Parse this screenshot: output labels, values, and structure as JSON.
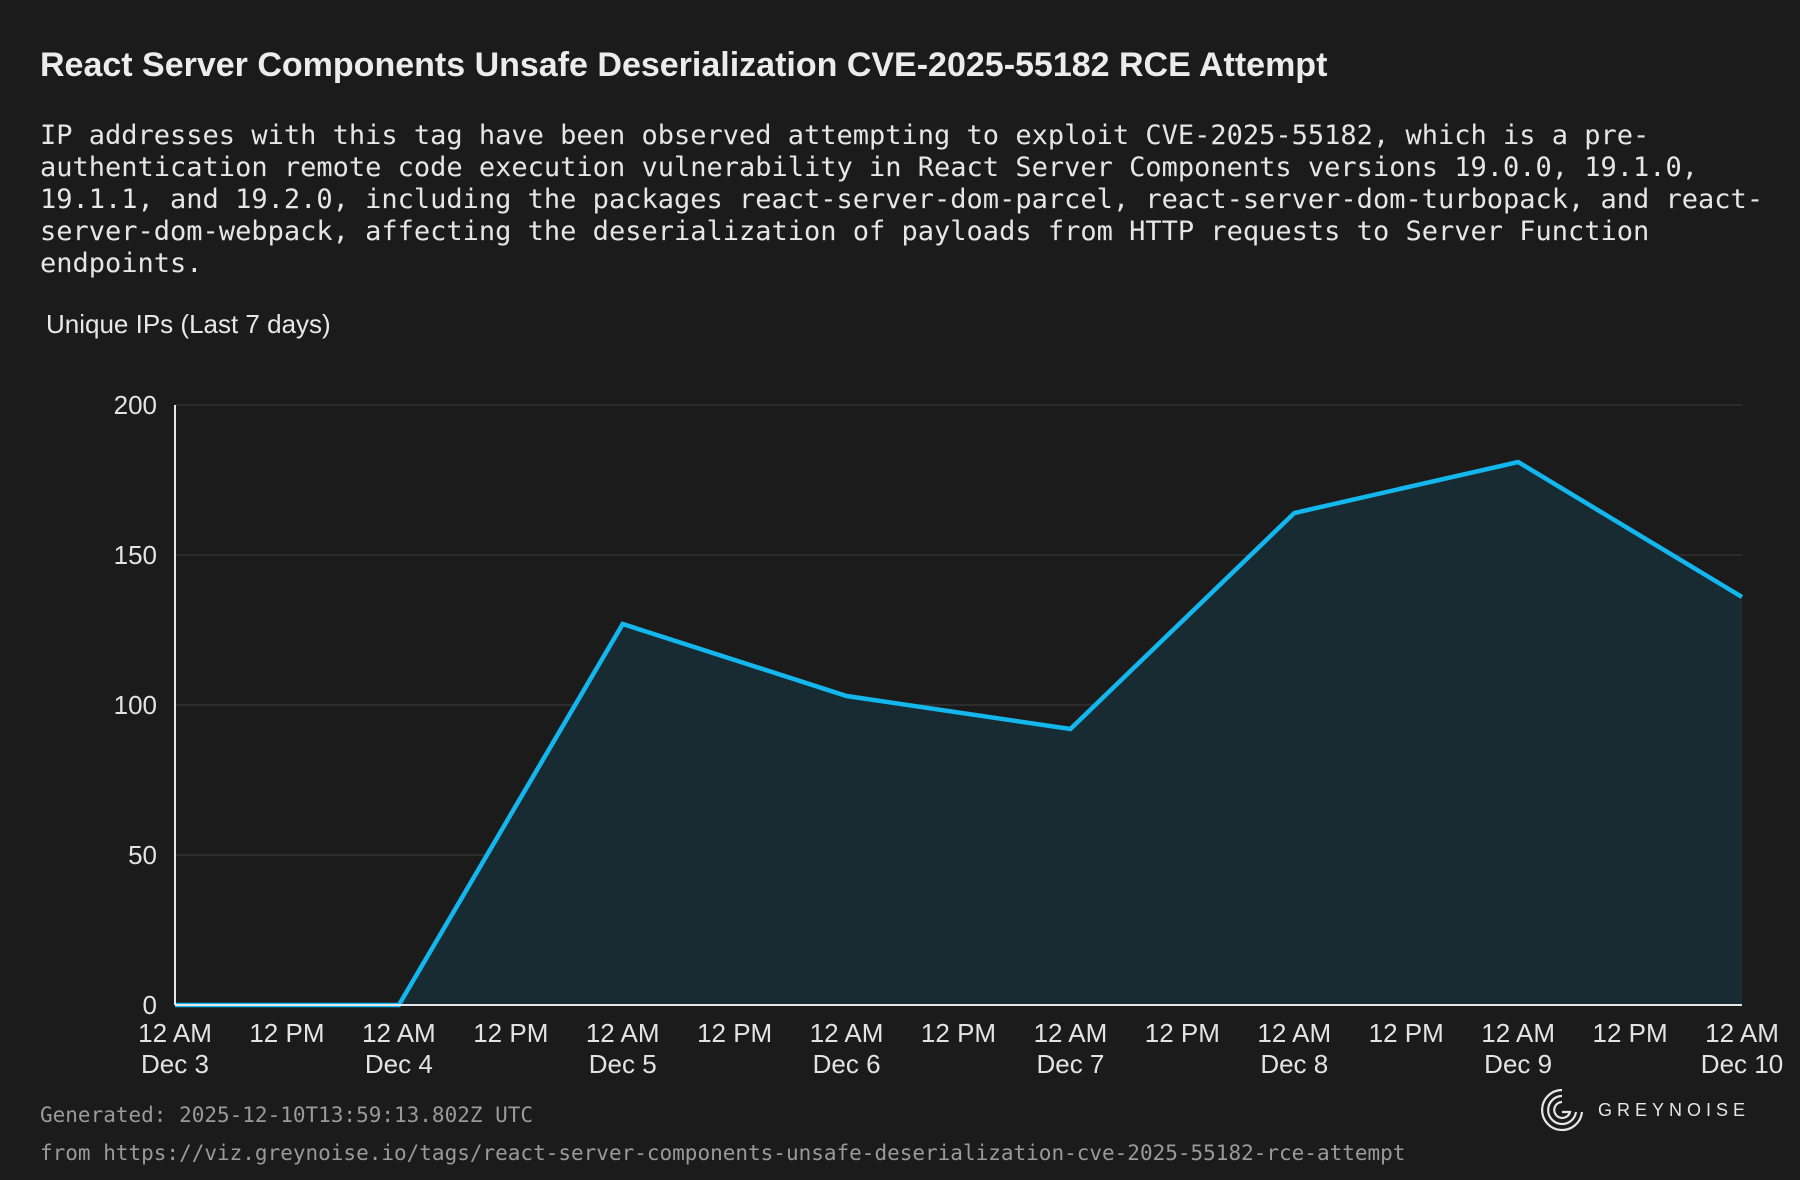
{
  "header": {
    "title": "React Server Components Unsafe Deserialization CVE-2025-55182 RCE Attempt",
    "description": "IP addresses with this tag have been observed attempting to exploit CVE-2025-55182, which is a pre-authentication remote code execution vulnerability in React Server Components versions 19.0.0, 19.1.0, 19.1.1, and 19.2.0, including the packages react-server-dom-parcel, react-server-dom-turbopack, and react-server-dom-webpack, affecting the deserialization of payloads from HTTP requests to Server Function endpoints."
  },
  "footer": {
    "generated": "Generated: 2025-12-10T13:59:13.802Z UTC",
    "source": "from https://viz.greynoise.io/tags/react-server-components-unsafe-deserialization-cve-2025-55182-rce-attempt",
    "brand": "GREYNOISE"
  },
  "chart_data": {
    "type": "area",
    "title": "Unique IPs (Last 7 days)",
    "xlabel": "",
    "ylabel": "",
    "x": [
      "Dec 3",
      "Dec 4",
      "Dec 5",
      "Dec 6",
      "Dec 7",
      "Dec 8",
      "Dec 9",
      "Dec 10"
    ],
    "series": [
      {
        "values": [
          0,
          0,
          127,
          103,
          92,
          164,
          181,
          136
        ]
      }
    ],
    "ylim": [
      0,
      200
    ],
    "yticks": [
      0,
      50,
      100,
      150,
      200
    ],
    "xticks": [
      {
        "line1": "12 AM",
        "line2": "Dec 3"
      },
      {
        "line1": "12 PM",
        "line2": ""
      },
      {
        "line1": "12 AM",
        "line2": "Dec 4"
      },
      {
        "line1": "12 PM",
        "line2": ""
      },
      {
        "line1": "12 AM",
        "line2": "Dec 5"
      },
      {
        "line1": "12 PM",
        "line2": ""
      },
      {
        "line1": "12 AM",
        "line2": "Dec 6"
      },
      {
        "line1": "12 PM",
        "line2": ""
      },
      {
        "line1": "12 AM",
        "line2": "Dec 7"
      },
      {
        "line1": "12 PM",
        "line2": ""
      },
      {
        "line1": "12 AM",
        "line2": "Dec 8"
      },
      {
        "line1": "12 PM",
        "line2": ""
      },
      {
        "line1": "12 AM",
        "line2": "Dec 9"
      },
      {
        "line1": "12 PM",
        "line2": ""
      },
      {
        "line1": "12 AM",
        "line2": "Dec 10"
      }
    ],
    "grid": true,
    "legend": "none",
    "colors": {
      "line": "#13b7ee",
      "fill": "#182b33",
      "grid": "#333333",
      "axis": "#e6e6e6"
    }
  }
}
